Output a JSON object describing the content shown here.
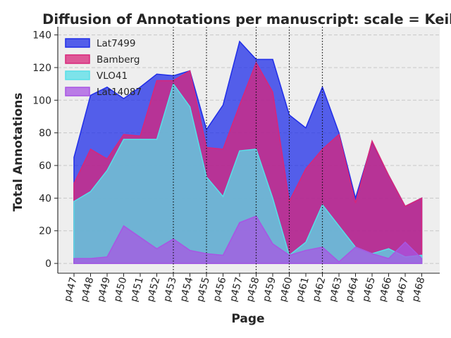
{
  "chart_data": {
    "type": "area",
    "title": "Diffusion of Annotations per manuscript: scale = Keil",
    "xlabel": "Page",
    "ylabel": "Total Annotations",
    "categories": [
      "p447",
      "p448",
      "p449",
      "p450",
      "p451",
      "p452",
      "p453",
      "p454",
      "p455",
      "p456",
      "p457",
      "p458",
      "p459",
      "p460",
      "p461",
      "p462",
      "p463",
      "p464",
      "p465",
      "p466",
      "p467",
      "p468"
    ],
    "ylim": [
      -6,
      145
    ],
    "yticks": [
      0,
      20,
      40,
      60,
      80,
      100,
      120,
      140
    ],
    "grid": true,
    "legend_position": "top-left",
    "vertical_markers": [
      "p453",
      "p455",
      "p458",
      "p460",
      "p462"
    ],
    "series": [
      {
        "name": "Lat7499",
        "color": "#1f2de8",
        "values": [
          65,
          103,
          108,
          101,
          108,
          116,
          115,
          118,
          82,
          97,
          136,
          125,
          125,
          91,
          83,
          108,
          80,
          40,
          74,
          54,
          35,
          40
        ]
      },
      {
        "name": "Bamberg",
        "color": "#d8267a",
        "values": [
          49,
          70,
          64,
          79,
          78,
          112,
          112,
          118,
          71,
          70,
          97,
          123,
          105,
          38,
          58,
          70,
          79,
          37,
          75,
          54,
          35,
          40
        ]
      },
      {
        "name": "VLO41",
        "color": "#57dfe8",
        "values": [
          38,
          44,
          57,
          76,
          76,
          76,
          110,
          96,
          53,
          41,
          69,
          70,
          40,
          5,
          13,
          36,
          23,
          10,
          6,
          9,
          4,
          5
        ]
      },
      {
        "name": "Lat14087",
        "color": "#a855e3",
        "values": [
          3,
          3,
          4,
          23,
          16,
          9,
          15,
          8,
          6,
          5,
          25,
          29,
          12,
          5,
          8,
          10,
          1,
          10,
          6,
          3,
          13,
          3
        ]
      }
    ]
  }
}
